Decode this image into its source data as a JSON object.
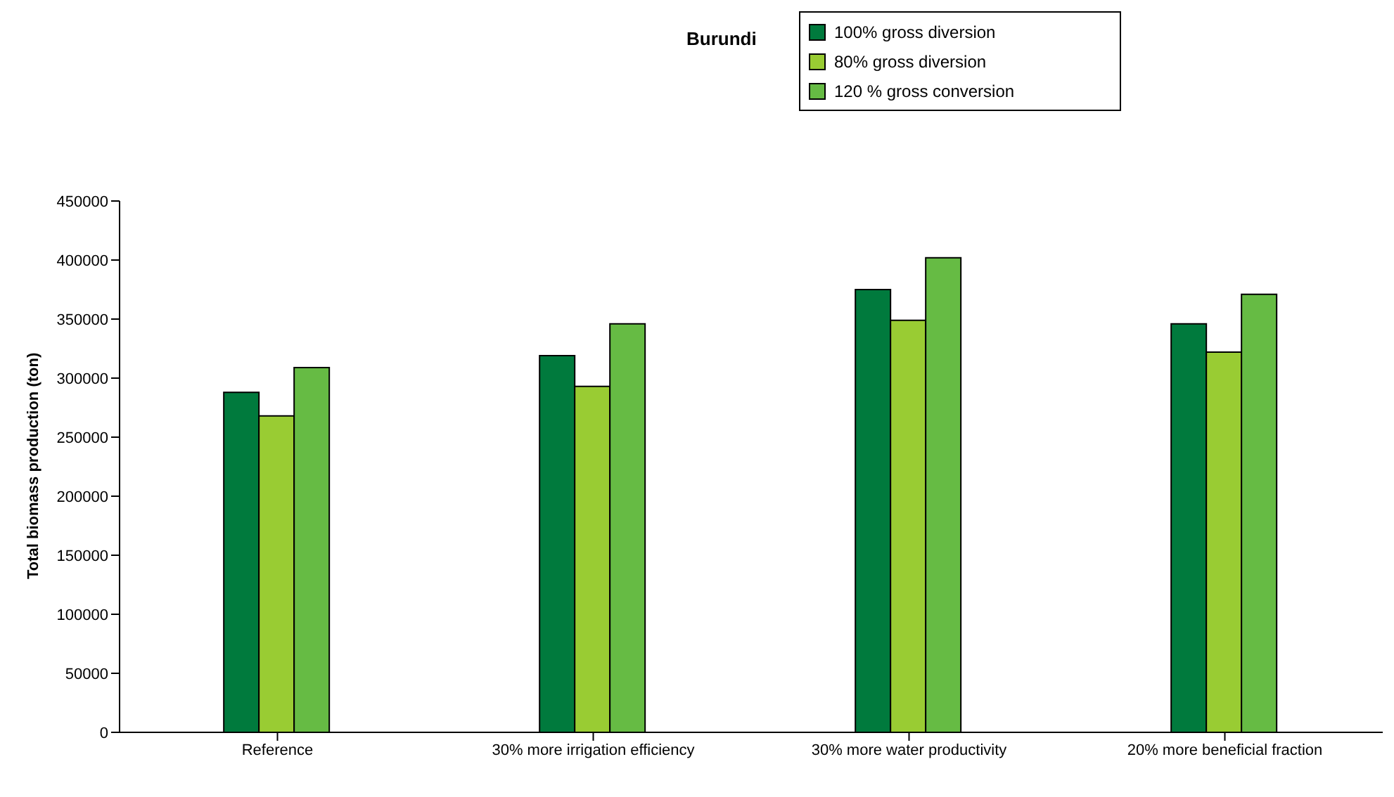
{
  "chart_data": {
    "type": "bar",
    "title": "Burundi",
    "ylabel": "Total biomass production (ton)",
    "categories": [
      "Reference",
      "30% more irrigation efficiency",
      "30% more water productivity",
      "20% more beneficial fraction"
    ],
    "series": [
      {
        "name": "100% gross diversion",
        "color": "#007a3d",
        "values": [
          288000,
          319000,
          375000,
          346000
        ]
      },
      {
        "name": "80% gross diversion",
        "color": "#99cc33",
        "values": [
          268000,
          293000,
          349000,
          322000
        ]
      },
      {
        "name": "120 % gross conversion",
        "color": "#66bb44",
        "values": [
          309000,
          346000,
          402000,
          371000
        ]
      }
    ],
    "ylim": [
      0,
      450000
    ],
    "yticks": [
      0,
      50000,
      100000,
      150000,
      200000,
      250000,
      300000,
      350000,
      400000,
      450000
    ],
    "grid": false,
    "legend": "top"
  }
}
